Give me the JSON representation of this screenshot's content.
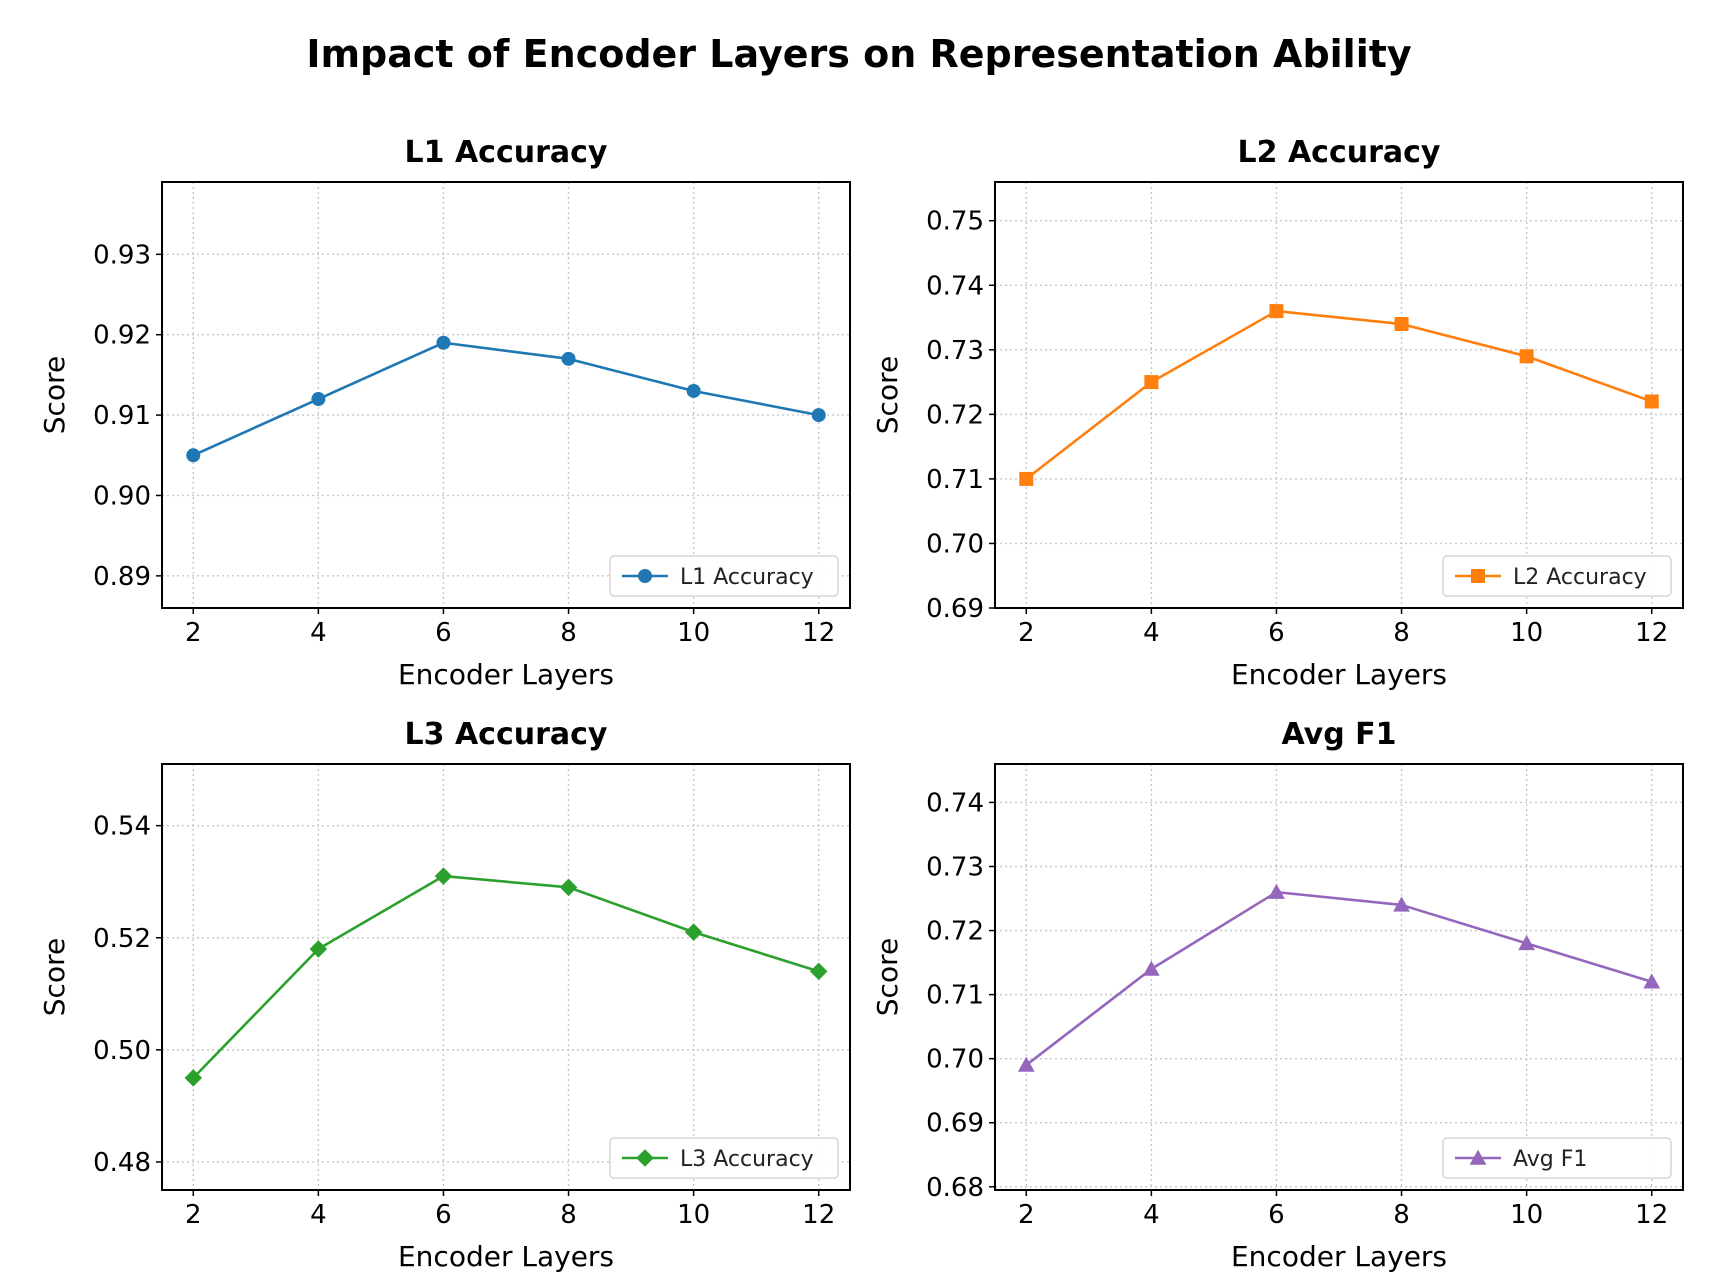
{
  "suptitle": "Impact of Encoder Layers on Representation Ability",
  "chart_data": [
    {
      "type": "line",
      "title": "L1 Accuracy",
      "xlabel": "Encoder Layers",
      "ylabel": "Score",
      "x": [
        2,
        4,
        6,
        8,
        10,
        12
      ],
      "series": [
        {
          "name": "L1 Accuracy",
          "values": [
            0.905,
            0.912,
            0.919,
            0.917,
            0.913,
            0.91
          ],
          "color": "#1f77b4",
          "marker": "circle"
        }
      ],
      "xlim": [
        1.5,
        12.5
      ],
      "ylim": [
        0.886,
        0.939
      ],
      "yticks": [
        0.89,
        0.9,
        0.91,
        0.92,
        0.93
      ],
      "ytick_labels": [
        "0.89",
        "0.90",
        "0.91",
        "0.92",
        "0.93"
      ],
      "xticks": [
        2,
        4,
        6,
        8,
        10,
        12
      ],
      "xtick_labels": [
        "2",
        "4",
        "6",
        "8",
        "10",
        "12"
      ],
      "grid": true,
      "legend": "lower-right"
    },
    {
      "type": "line",
      "title": "L2 Accuracy",
      "xlabel": "Encoder Layers",
      "ylabel": "Score",
      "x": [
        2,
        4,
        6,
        8,
        10,
        12
      ],
      "series": [
        {
          "name": "L2 Accuracy",
          "values": [
            0.71,
            0.725,
            0.736,
            0.734,
            0.729,
            0.722
          ],
          "color": "#ff7f0e",
          "marker": "square"
        }
      ],
      "xlim": [
        1.5,
        12.5
      ],
      "ylim": [
        0.69,
        0.756
      ],
      "yticks": [
        0.69,
        0.7,
        0.71,
        0.72,
        0.73,
        0.74,
        0.75
      ],
      "ytick_labels": [
        "0.69",
        "0.70",
        "0.71",
        "0.72",
        "0.73",
        "0.74",
        "0.75"
      ],
      "xticks": [
        2,
        4,
        6,
        8,
        10,
        12
      ],
      "xtick_labels": [
        "2",
        "4",
        "6",
        "8",
        "10",
        "12"
      ],
      "grid": true,
      "legend": "lower-right"
    },
    {
      "type": "line",
      "title": "L3 Accuracy",
      "xlabel": "Encoder Layers",
      "ylabel": "Score",
      "x": [
        2,
        4,
        6,
        8,
        10,
        12
      ],
      "series": [
        {
          "name": "L3 Accuracy",
          "values": [
            0.495,
            0.518,
            0.531,
            0.529,
            0.521,
            0.514
          ],
          "color": "#2ca02c",
          "marker": "diamond"
        }
      ],
      "xlim": [
        1.5,
        12.5
      ],
      "ylim": [
        0.475,
        0.551
      ],
      "yticks": [
        0.48,
        0.5,
        0.52,
        0.54
      ],
      "ytick_labels": [
        "0.48",
        "0.50",
        "0.52",
        "0.54"
      ],
      "xticks": [
        2,
        4,
        6,
        8,
        10,
        12
      ],
      "xtick_labels": [
        "2",
        "4",
        "6",
        "8",
        "10",
        "12"
      ],
      "grid": true,
      "legend": "lower-right"
    },
    {
      "type": "line",
      "title": "Avg F1",
      "xlabel": "Encoder Layers",
      "ylabel": "Score",
      "x": [
        2,
        4,
        6,
        8,
        10,
        12
      ],
      "series": [
        {
          "name": "Avg F1",
          "values": [
            0.699,
            0.714,
            0.726,
            0.724,
            0.718,
            0.712
          ],
          "color": "#9467bd",
          "marker": "triangle"
        }
      ],
      "xlim": [
        1.5,
        12.5
      ],
      "ylim": [
        0.6795,
        0.746
      ],
      "yticks": [
        0.68,
        0.69,
        0.7,
        0.71,
        0.72,
        0.73,
        0.74
      ],
      "ytick_labels": [
        "0.68",
        "0.69",
        "0.70",
        "0.71",
        "0.72",
        "0.73",
        "0.74"
      ],
      "xticks": [
        2,
        4,
        6,
        8,
        10,
        12
      ],
      "xtick_labels": [
        "2",
        "4",
        "6",
        "8",
        "10",
        "12"
      ],
      "grid": true,
      "legend": "lower-right"
    }
  ]
}
